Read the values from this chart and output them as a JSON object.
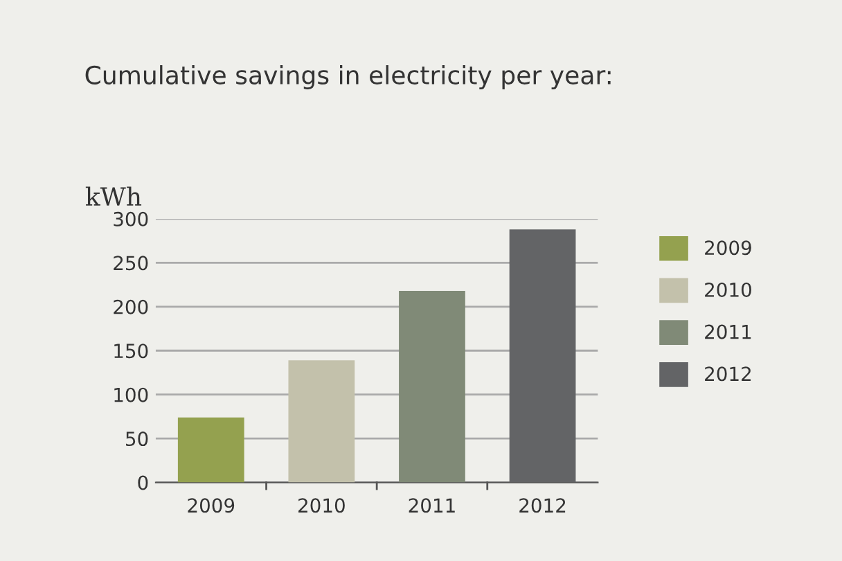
{
  "chart_data": {
    "type": "bar",
    "title": "Cumulative savings in electricity per year:",
    "ylabel": "kWh",
    "categories": [
      "2009",
      "2010",
      "2011",
      "2012"
    ],
    "series": [
      {
        "name": "2009",
        "color": "#94a14f",
        "values": [
          74,
          null,
          null,
          null
        ]
      },
      {
        "name": "2010",
        "color": "#c3c1ab",
        "values": [
          null,
          139,
          null,
          null
        ]
      },
      {
        "name": "2011",
        "color": "#808a77",
        "values": [
          null,
          null,
          218,
          null
        ]
      },
      {
        "name": "2012",
        "color": "#636466",
        "values": [
          null,
          null,
          null,
          288
        ]
      }
    ],
    "ylim": [
      0,
      300
    ],
    "yticks": [
      0,
      50,
      100,
      150,
      200,
      250,
      300
    ],
    "grid": "y",
    "legend": "right"
  }
}
